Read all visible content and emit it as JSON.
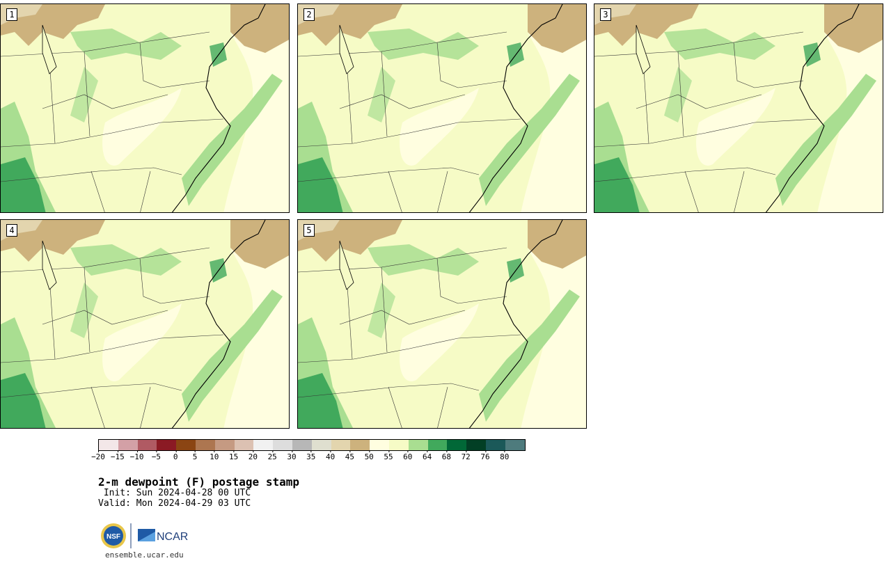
{
  "panels": [
    {
      "label": "1"
    },
    {
      "label": "2"
    },
    {
      "label": "3"
    },
    {
      "label": "4"
    },
    {
      "label": "5"
    }
  ],
  "colorbar": {
    "ticks": [
      "−20",
      "−15",
      "−10",
      "−5",
      "0",
      "5",
      "10",
      "15",
      "20",
      "25",
      "30",
      "35",
      "40",
      "45",
      "50",
      "55",
      "60",
      "64",
      "68",
      "72",
      "76",
      "80"
    ],
    "colors": [
      "#f3e7e8",
      "#d3a0a6",
      "#b05a63",
      "#8b1a24",
      "#8b4513",
      "#ad7650",
      "#c59a82",
      "#dcc1b2",
      "#f1f1f1",
      "#dddddd",
      "#b7b7b7",
      "#dfdfcf",
      "#e3d5ae",
      "#cdb27d",
      "#fffee0",
      "#f6fbc6",
      "#a9de91",
      "#41a95c",
      "#016837",
      "#023f25",
      "#1b5959",
      "#4e7b7d"
    ]
  },
  "title": "2-m dewpoint (F) postage stamp",
  "init": " Init: Sun 2024-04-28 00 UTC",
  "valid": "Valid: Mon 2024-04-29 03 UTC",
  "logos": {
    "nsf": "NSF",
    "ncar": "NCAR"
  },
  "website": "ensemble.ucar.edu"
}
